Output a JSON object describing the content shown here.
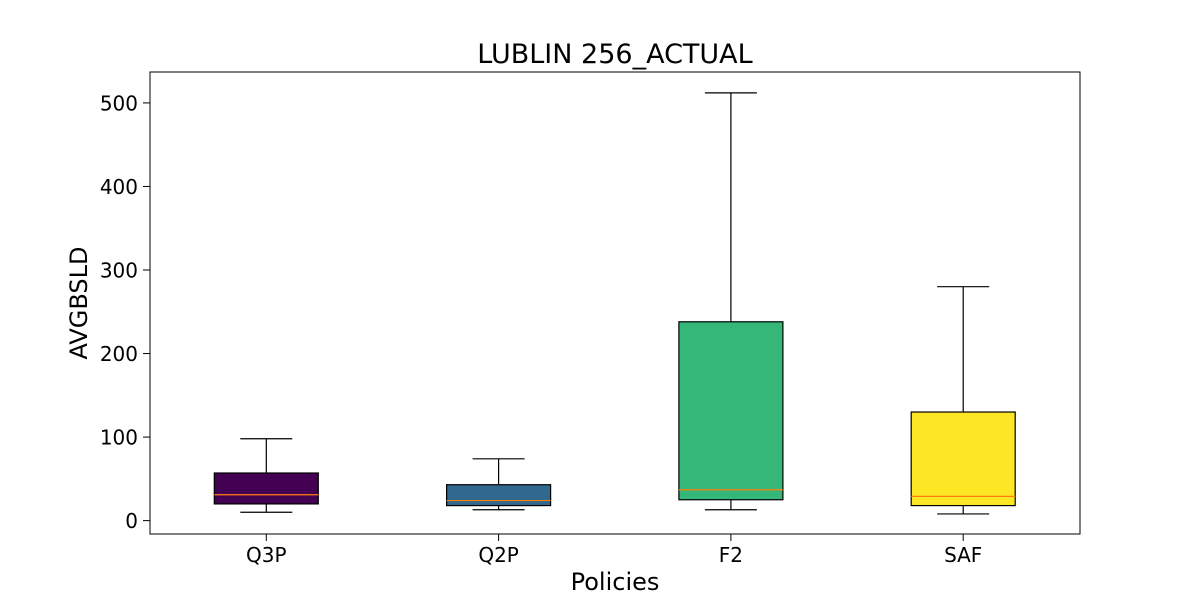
{
  "chart_data": {
    "type": "box",
    "title": "LUBLIN 256_ACTUAL",
    "xlabel": "Policies",
    "ylabel": "AVGBSLD",
    "ylim": [
      -16,
      537
    ],
    "yticks": [
      0,
      100,
      200,
      300,
      400,
      500
    ],
    "grid": false,
    "categories": [
      "Q3P",
      "Q2P",
      "F2",
      "SAF"
    ],
    "boxes": [
      {
        "category": "Q3P",
        "whisker_low": 10,
        "q1": 20,
        "median": 31,
        "q3": 57,
        "whisker_high": 98,
        "color": "#440154"
      },
      {
        "category": "Q2P",
        "whisker_low": 13,
        "q1": 18,
        "median": 24,
        "q3": 43,
        "whisker_high": 74,
        "color": "#31688e"
      },
      {
        "category": "F2",
        "whisker_low": 13,
        "q1": 25,
        "median": 37,
        "q3": 238,
        "whisker_high": 512,
        "color": "#35b779"
      },
      {
        "category": "SAF",
        "whisker_low": 8,
        "q1": 18,
        "median": 29,
        "q3": 130,
        "whisker_high": 280,
        "color": "#fde725"
      }
    ],
    "median_color": "#ff7f0e"
  }
}
